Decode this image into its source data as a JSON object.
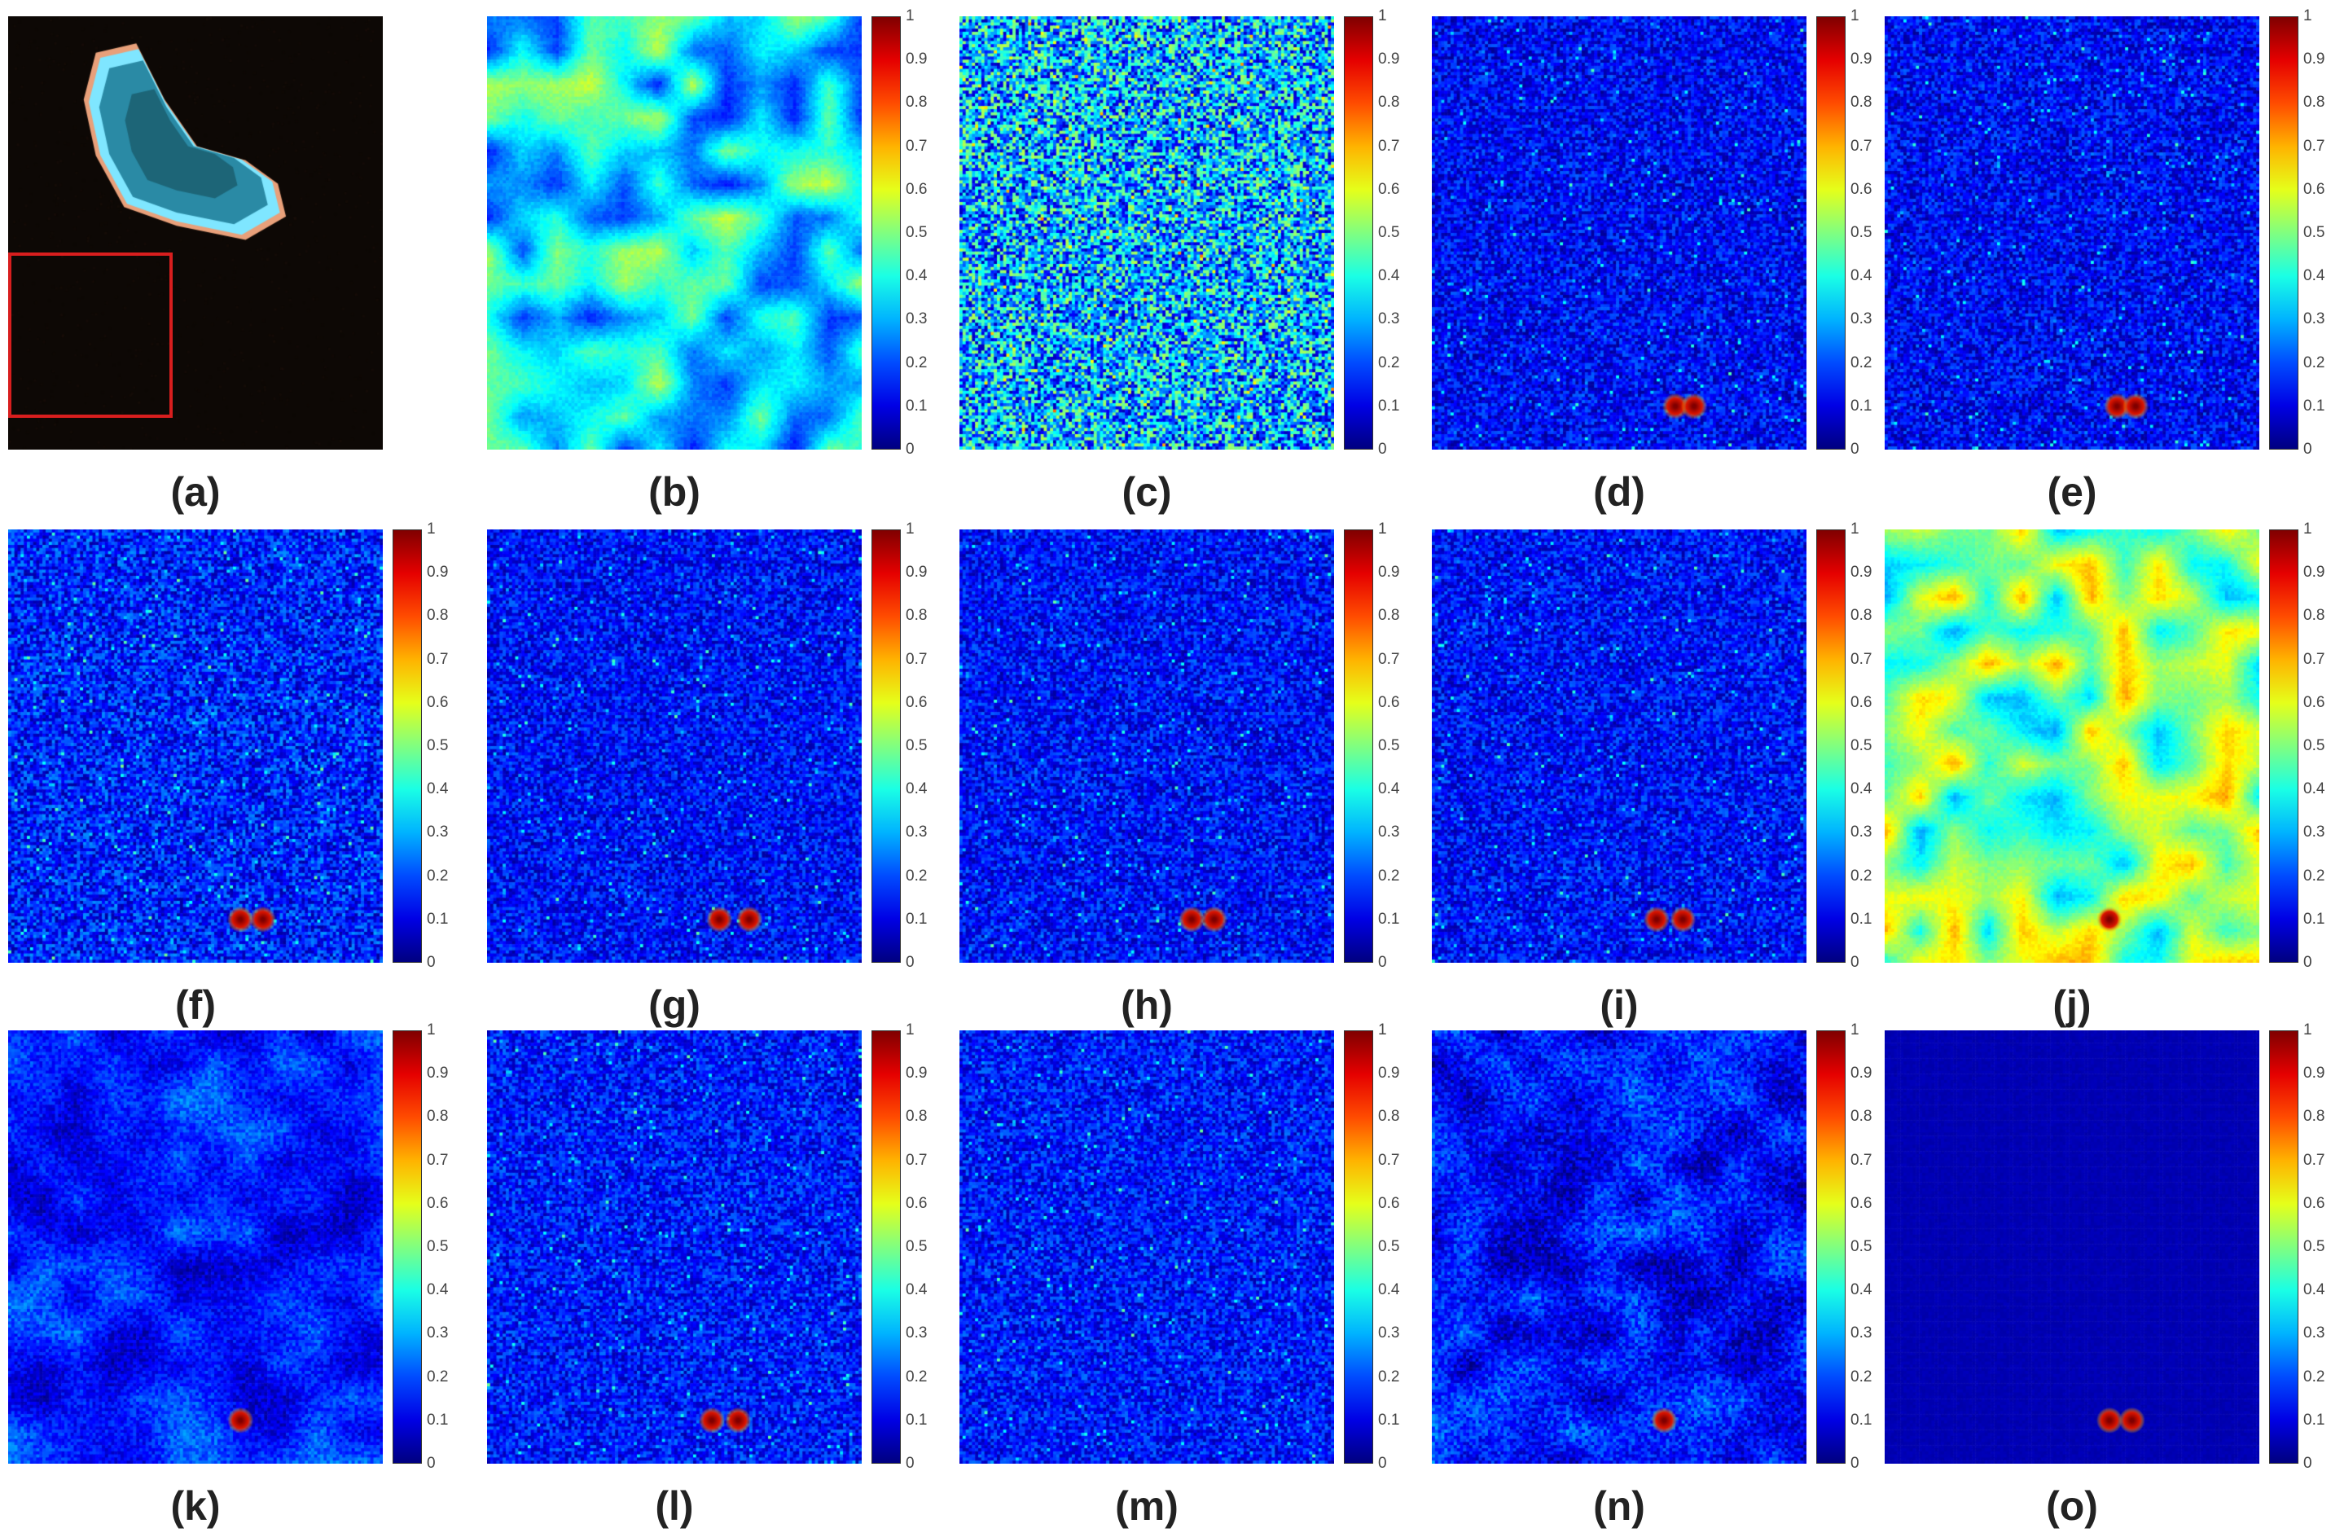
{
  "figure": {
    "colormap": "jet",
    "colorbar_ticks": [
      "0",
      "0.1",
      "0.2",
      "0.3",
      "0.4",
      "0.5",
      "0.6",
      "0.7",
      "0.8",
      "0.9",
      "1"
    ],
    "roi_color": "#d81e1e",
    "panels": [
      {
        "id": "a",
        "caption": "(a)",
        "kind": "photo",
        "content": "satellite scene: bright island with cyan shore on dark water, red box marks lower-left region"
      },
      {
        "id": "b",
        "caption": "(b)",
        "kind": "heatmap",
        "level": 0.35,
        "noise": 0.05,
        "smoothness": "smooth",
        "targets": []
      },
      {
        "id": "c",
        "caption": "(c)",
        "kind": "heatmap",
        "level": 0.3,
        "noise": 0.25,
        "smoothness": "speckle",
        "targets": []
      },
      {
        "id": "d",
        "caption": "(d)",
        "kind": "heatmap",
        "level": 0.12,
        "noise": 0.1,
        "smoothness": "speckle",
        "targets": [
          {
            "x": 0.65,
            "y": 0.9
          },
          {
            "x": 0.7,
            "y": 0.9
          }
        ]
      },
      {
        "id": "e",
        "caption": "(e)",
        "kind": "heatmap",
        "level": 0.12,
        "noise": 0.1,
        "smoothness": "speckle",
        "targets": [
          {
            "x": 0.62,
            "y": 0.9
          },
          {
            "x": 0.67,
            "y": 0.9
          }
        ]
      },
      {
        "id": "f",
        "caption": "(f)",
        "kind": "heatmap",
        "level": 0.15,
        "noise": 0.12,
        "smoothness": "speckle",
        "targets": [
          {
            "x": 0.62,
            "y": 0.9
          },
          {
            "x": 0.68,
            "y": 0.9
          }
        ]
      },
      {
        "id": "g",
        "caption": "(g)",
        "kind": "heatmap",
        "level": 0.13,
        "noise": 0.1,
        "smoothness": "speckle",
        "targets": [
          {
            "x": 0.62,
            "y": 0.9
          },
          {
            "x": 0.7,
            "y": 0.9
          }
        ]
      },
      {
        "id": "h",
        "caption": "(h)",
        "kind": "heatmap",
        "level": 0.13,
        "noise": 0.1,
        "smoothness": "speckle",
        "targets": [
          {
            "x": 0.62,
            "y": 0.9
          },
          {
            "x": 0.68,
            "y": 0.9
          }
        ]
      },
      {
        "id": "i",
        "caption": "(i)",
        "kind": "heatmap",
        "level": 0.13,
        "noise": 0.1,
        "smoothness": "speckle",
        "targets": [
          {
            "x": 0.6,
            "y": 0.9
          },
          {
            "x": 0.67,
            "y": 0.9
          }
        ]
      },
      {
        "id": "j",
        "caption": "(j)",
        "kind": "heatmap",
        "level": 0.5,
        "noise": 0.05,
        "smoothness": "smooth",
        "targets": [
          {
            "x": 0.6,
            "y": 0.9
          }
        ]
      },
      {
        "id": "k",
        "caption": "(k)",
        "kind": "heatmap",
        "level": 0.15,
        "noise": 0.06,
        "smoothness": "blotchy",
        "targets": [
          {
            "x": 0.62,
            "y": 0.9
          }
        ]
      },
      {
        "id": "l",
        "caption": "(l)",
        "kind": "heatmap",
        "level": 0.14,
        "noise": 0.1,
        "smoothness": "speckle",
        "targets": [
          {
            "x": 0.6,
            "y": 0.9
          },
          {
            "x": 0.67,
            "y": 0.9
          }
        ]
      },
      {
        "id": "m",
        "caption": "(m)",
        "kind": "heatmap",
        "level": 0.14,
        "noise": 0.1,
        "smoothness": "speckle",
        "targets": []
      },
      {
        "id": "n",
        "caption": "(n)",
        "kind": "heatmap",
        "level": 0.13,
        "noise": 0.08,
        "smoothness": "blotchy",
        "targets": [
          {
            "x": 0.62,
            "y": 0.9
          }
        ]
      },
      {
        "id": "o",
        "caption": "(o)",
        "kind": "heatmap",
        "level": 0.05,
        "noise": 0.02,
        "smoothness": "flat",
        "targets": [
          {
            "x": 0.6,
            "y": 0.9
          },
          {
            "x": 0.66,
            "y": 0.9
          }
        ]
      }
    ]
  }
}
